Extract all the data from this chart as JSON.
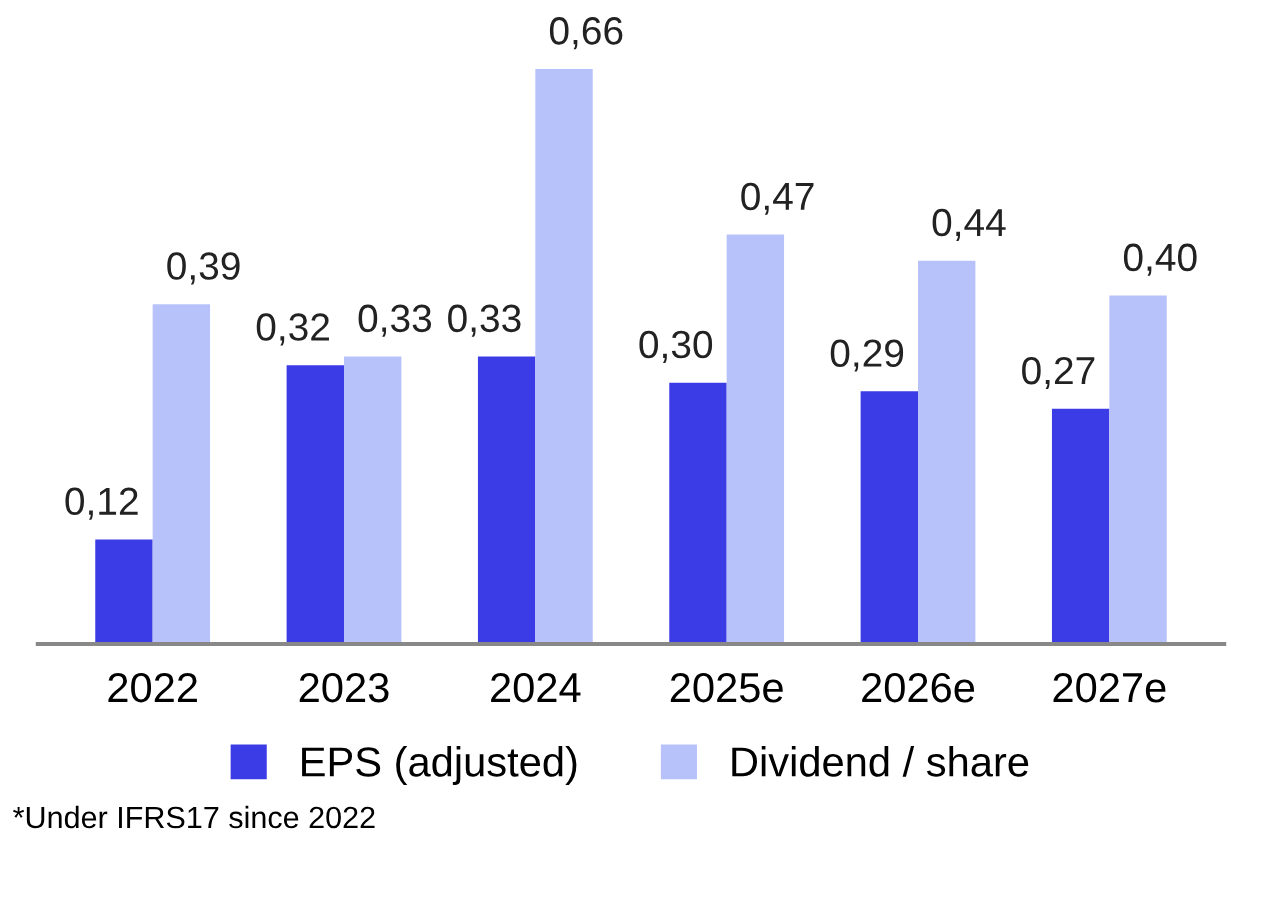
{
  "chart_data": {
    "type": "bar",
    "categories": [
      "2022",
      "2023",
      "2024",
      "2025e",
      "2026e",
      "2027e"
    ],
    "series": [
      {
        "name": "EPS (adjusted)",
        "color": "#3c3ce6",
        "values": [
          0.12,
          0.32,
          0.33,
          0.3,
          0.29,
          0.27
        ],
        "value_labels": [
          "0,12",
          "0,32",
          "0,33",
          "0,30",
          "0,29",
          "0,27"
        ]
      },
      {
        "name": "Dividend / share",
        "color": "#b8c2fa",
        "values": [
          0.39,
          0.33,
          0.66,
          0.47,
          0.44,
          0.4
        ],
        "value_labels": [
          "0,39",
          "0,33",
          "0,66",
          "0,47",
          "0,44",
          "0,40"
        ]
      }
    ],
    "legend": "bottom",
    "annotations": [
      "*Under IFRS17 since 2022"
    ]
  }
}
